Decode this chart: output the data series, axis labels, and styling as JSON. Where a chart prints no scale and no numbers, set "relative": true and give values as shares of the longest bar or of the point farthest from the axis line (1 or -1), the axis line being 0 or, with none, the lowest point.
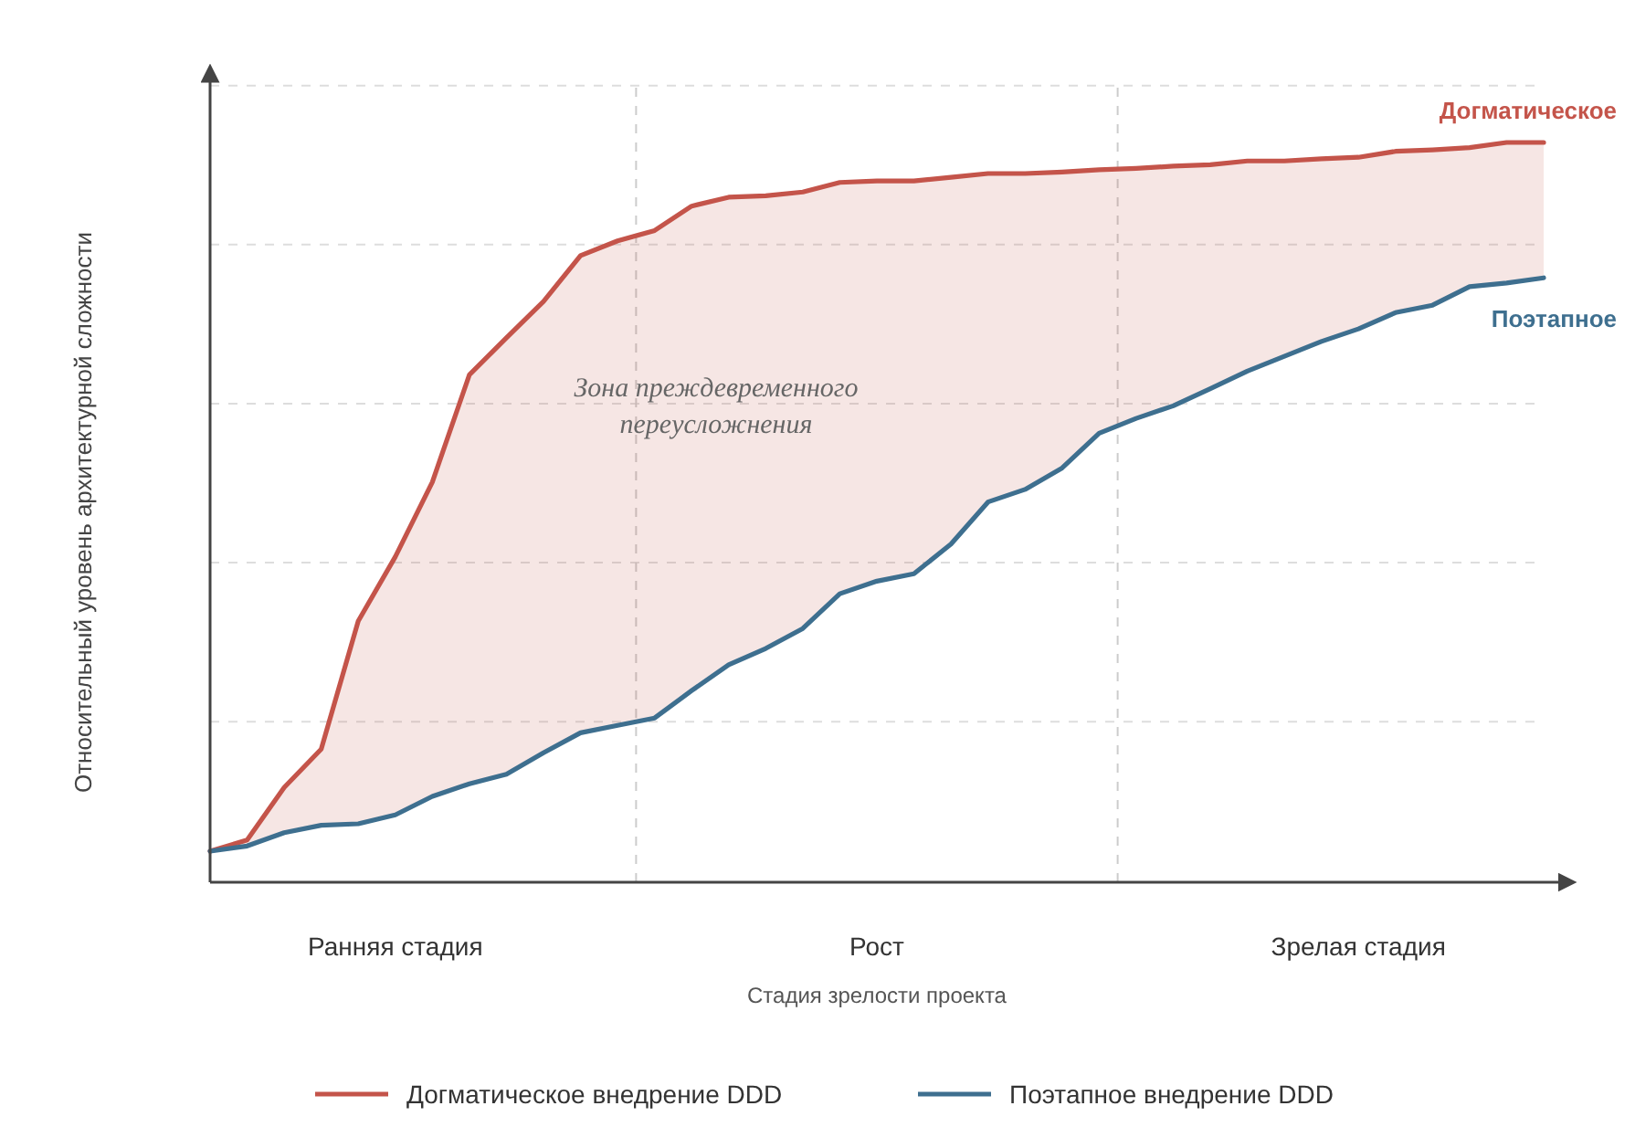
{
  "chart_data": {
    "type": "line",
    "relative": true,
    "xlabel": "Стадия зрелости проекта",
    "ylabel": "Относительный уровень архитектурной сложности",
    "categories": [
      null,
      null,
      null,
      null,
      null,
      "Ранняя стадия",
      null,
      null,
      null,
      null,
      null,
      null,
      null,
      null,
      null,
      null,
      null,
      null,
      "Рост",
      null,
      null,
      null,
      null,
      null,
      null,
      null,
      null,
      null,
      null,
      null,
      null,
      "Зрелая стадия",
      null,
      null,
      null,
      null,
      null
    ],
    "series": [
      {
        "name": "Догматическое внедрение DDD",
        "color": "#c4544a",
        "values": [
          0.042,
          0.057,
          0.128,
          0.18,
          0.353,
          0.44,
          0.541,
          0.686,
          0.736,
          0.785,
          0.847,
          0.867,
          0.881,
          0.914,
          0.926,
          0.928,
          0.933,
          0.946,
          0.948,
          0.948,
          0.953,
          0.958,
          0.958,
          0.96,
          0.963,
          0.965,
          0.968,
          0.97,
          0.975,
          0.975,
          0.978,
          0.98,
          0.988,
          0.99,
          0.993,
          1.0,
          1.0
        ],
        "lower": [
          0.042,
          0.049,
          0.067,
          0.077,
          0.079,
          0.091,
          0.116,
          0.133,
          0.146,
          0.175,
          0.202,
          0.212,
          0.222,
          0.259,
          0.294,
          0.316,
          0.343,
          0.39,
          0.407,
          0.417,
          0.457,
          0.514,
          0.531,
          0.56,
          0.607,
          0.627,
          0.644,
          0.667,
          0.691,
          0.711,
          0.731,
          0.748,
          0.77,
          0.78,
          0.805,
          0.81,
          0.817
        ],
        "upper": [
          0.042,
          0.057,
          0.128,
          0.18,
          0.353,
          0.44,
          0.541,
          0.686,
          0.736,
          0.785,
          0.847,
          0.867,
          0.881,
          0.914,
          0.926,
          0.928,
          0.933,
          0.946,
          0.948,
          0.948,
          0.953,
          0.958,
          0.958,
          0.96,
          0.963,
          0.965,
          0.968,
          0.97,
          0.975,
          0.975,
          0.978,
          0.98,
          0.988,
          0.99,
          0.993,
          1.0,
          1.0
        ]
      },
      {
        "name": "Поэтапное внедрение DDD",
        "color": "#3e6f8f",
        "values": [
          0.042,
          0.049,
          0.067,
          0.077,
          0.079,
          0.091,
          0.116,
          0.133,
          0.146,
          0.175,
          0.202,
          0.212,
          0.222,
          0.259,
          0.294,
          0.316,
          0.343,
          0.39,
          0.407,
          0.417,
          0.457,
          0.514,
          0.531,
          0.56,
          0.607,
          0.627,
          0.644,
          0.667,
          0.691,
          0.711,
          0.731,
          0.748,
          0.77,
          0.78,
          0.805,
          0.81,
          0.817
        ]
      }
    ],
    "ref_lines": [
      {
        "axis": "y",
        "value": 0.217,
        "line_style": "dashed",
        "color": "#dddddd"
      },
      {
        "axis": "y",
        "value": 0.432,
        "line_style": "dashed",
        "color": "#dddddd"
      },
      {
        "axis": "y",
        "value": 0.647,
        "line_style": "dashed",
        "color": "#dddddd"
      },
      {
        "axis": "y",
        "value": 0.862,
        "line_style": "dashed",
        "color": "#dddddd"
      },
      {
        "axis": "y",
        "value": 1.077,
        "line_style": "dashed",
        "color": "#dddddd"
      }
    ],
    "annotations": [
      "Догматическое",
      "Поэтапное",
      "Зона преждевременного\nпереусложнения"
    ],
    "legend": "bottom",
    "line_style": "solid",
    "marker": "none"
  }
}
